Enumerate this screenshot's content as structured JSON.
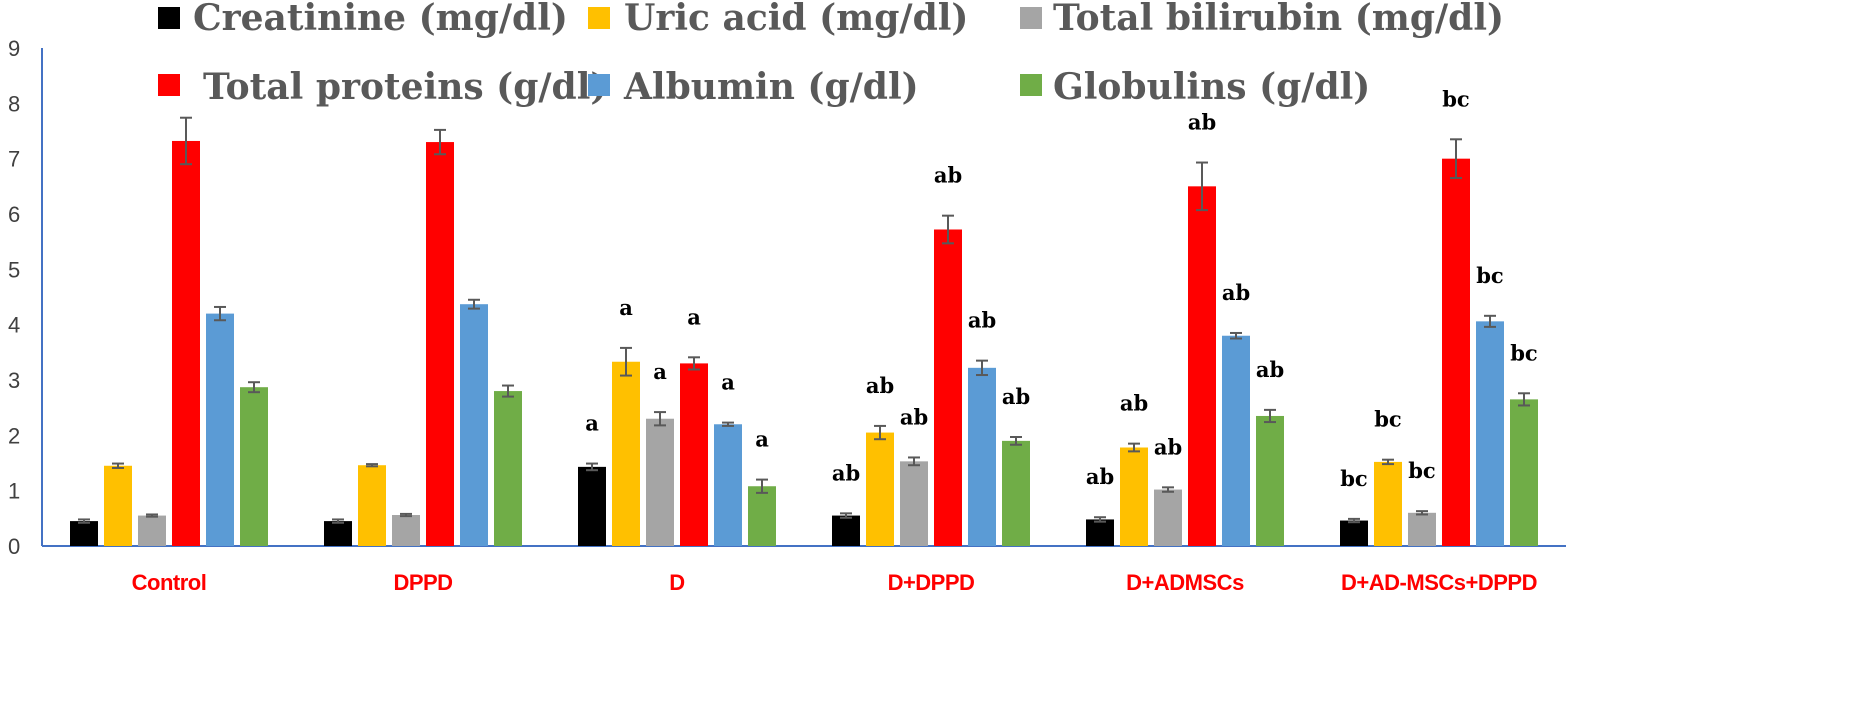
{
  "chart_data": {
    "type": "bar",
    "title": "",
    "xlabel": "",
    "ylabel": "",
    "ylim": [
      0,
      9
    ],
    "yticks": [
      "0",
      "1",
      "2",
      "3",
      "4",
      "5",
      "6",
      "7",
      "8",
      "9"
    ],
    "grid": false,
    "legend_position": "top",
    "categories": [
      "Control",
      "DPPD",
      "D",
      "D+DPPD",
      "D+ADMSCs",
      "D+AD-MSCs+DPPD"
    ],
    "series": [
      {
        "name": "Creatinine (mg/dl)",
        "color": "#000000",
        "values": [
          0.45,
          0.45,
          1.43,
          0.55,
          0.48,
          0.46
        ],
        "errors": [
          0.03,
          0.03,
          0.06,
          0.04,
          0.04,
          0.03
        ],
        "labels": [
          "",
          "",
          "a",
          "ab",
          "ab",
          "bc"
        ]
      },
      {
        "name": "Uric acid (mg/dl)",
        "color": "#ffc000",
        "values": [
          1.45,
          1.46,
          3.33,
          2.05,
          1.78,
          1.52
        ],
        "errors": [
          0.04,
          0.02,
          0.25,
          0.12,
          0.07,
          0.04
        ],
        "labels": [
          "",
          "",
          "a",
          "ab",
          "ab",
          "bc"
        ]
      },
      {
        "name": "Total bilirubin (mg/dl)",
        "color": "#a5a5a5",
        "values": [
          0.55,
          0.56,
          2.3,
          1.53,
          1.02,
          0.6
        ],
        "errors": [
          0.02,
          0.02,
          0.12,
          0.07,
          0.04,
          0.03
        ],
        "labels": [
          "",
          "",
          "a",
          "ab",
          "ab",
          "bc"
        ]
      },
      {
        "name": "Total proteins (g/dl)",
        "color": "#ff0000",
        "values": [
          7.32,
          7.3,
          3.3,
          5.72,
          6.5,
          7.0
        ],
        "errors": [
          0.42,
          0.22,
          0.11,
          0.25,
          0.43,
          0.35
        ],
        "labels": [
          "",
          "",
          "a",
          "ab",
          "ab",
          "bc"
        ]
      },
      {
        "name": "Albumin (g/dl)",
        "color": "#5b9bd5",
        "values": [
          4.2,
          4.37,
          2.2,
          3.22,
          3.8,
          4.06
        ],
        "errors": [
          0.12,
          0.08,
          0.03,
          0.13,
          0.05,
          0.1
        ],
        "labels": [
          "",
          "",
          "a",
          "ab",
          "ab",
          "bc"
        ]
      },
      {
        "name": "Globulins (g/dl)",
        "color": "#70ad47",
        "values": [
          2.87,
          2.8,
          1.08,
          1.9,
          2.35,
          2.65
        ],
        "errors": [
          0.09,
          0.1,
          0.12,
          0.07,
          0.11,
          0.11
        ],
        "labels": [
          "",
          "",
          "a",
          "ab",
          "ab",
          "bc"
        ]
      }
    ]
  }
}
